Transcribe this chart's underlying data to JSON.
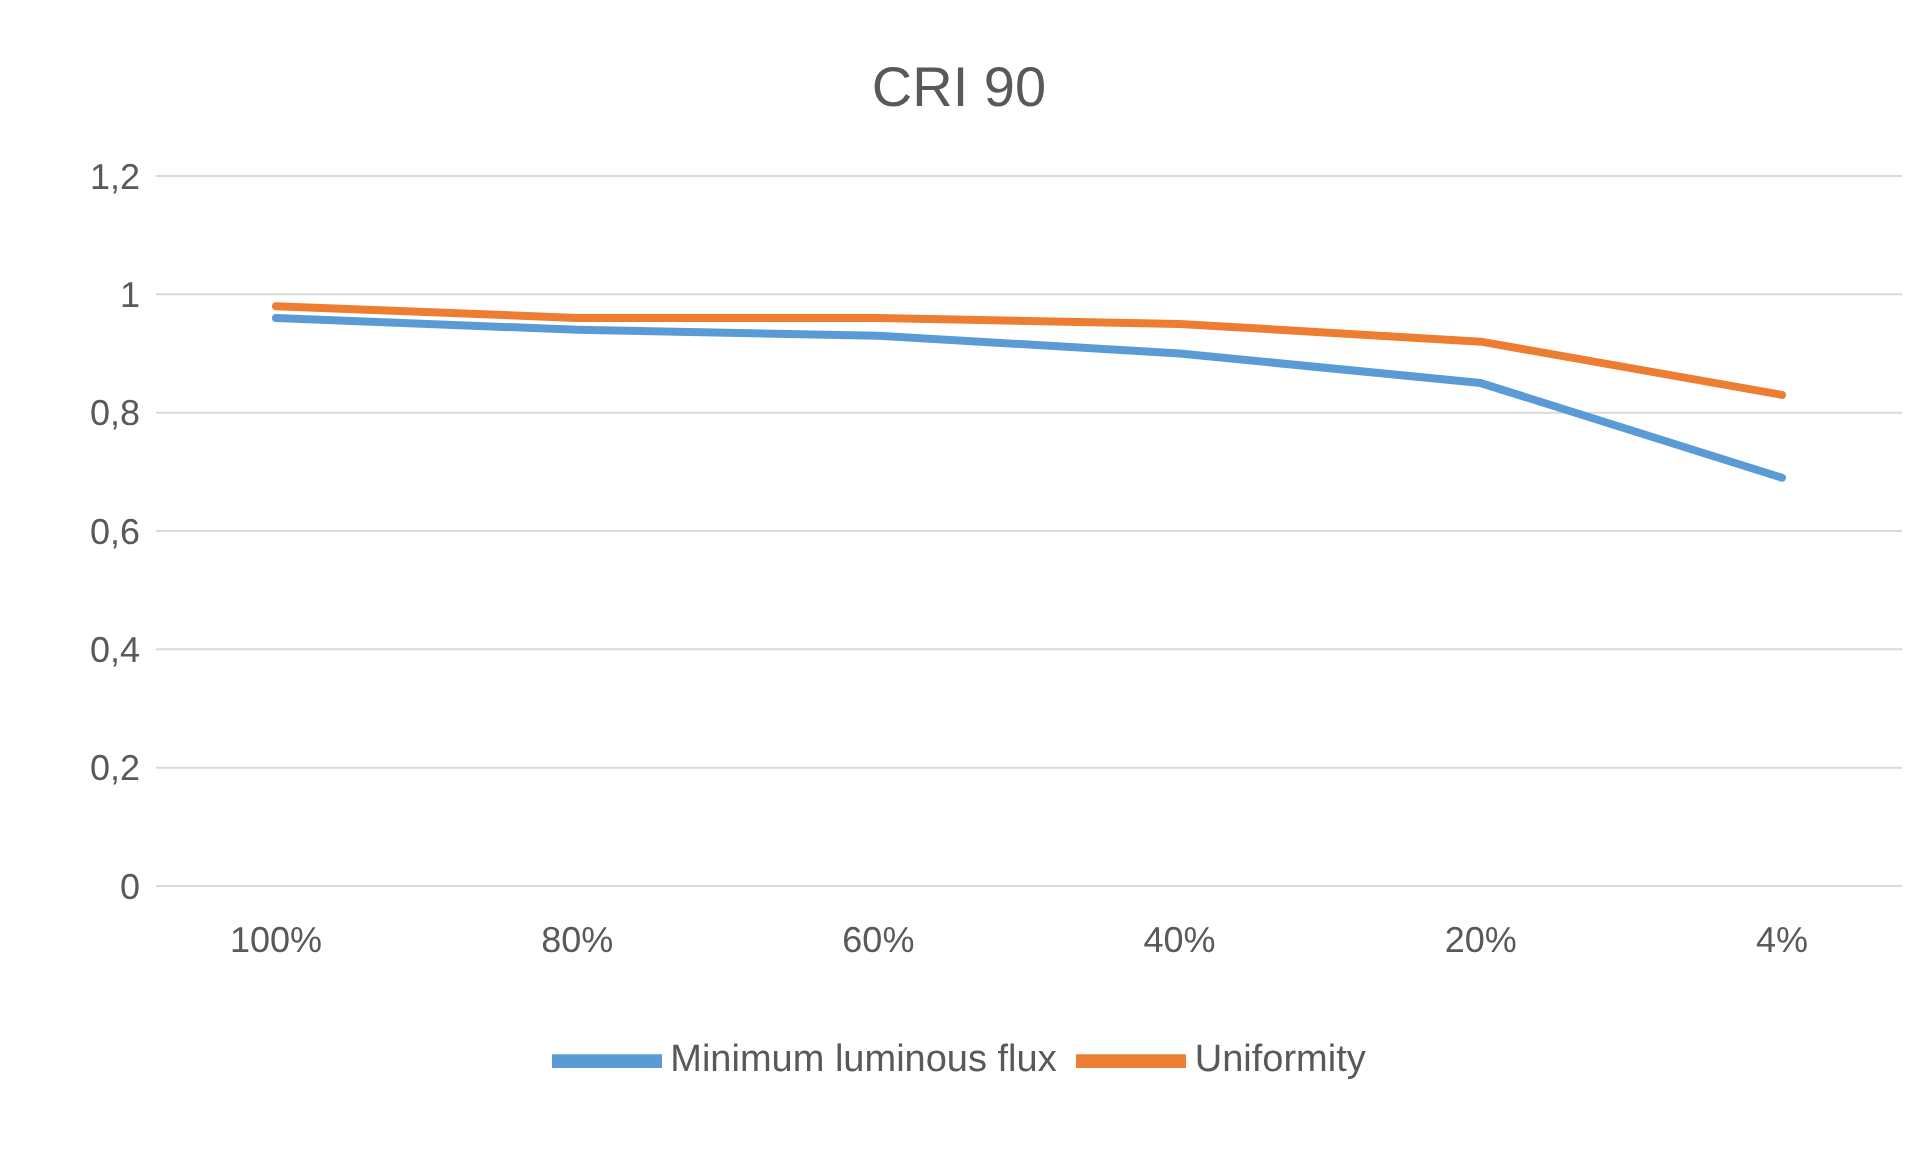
{
  "chart_data": {
    "type": "line",
    "title": "CRI 90",
    "categories": [
      "100%",
      "80%",
      "60%",
      "40%",
      "20%",
      "4%"
    ],
    "series": [
      {
        "name": "Minimum luminous flux",
        "color": "#5b9bd5",
        "values": [
          0.96,
          0.94,
          0.93,
          0.9,
          0.85,
          0.69
        ]
      },
      {
        "name": "Uniformity",
        "color": "#ed7d31",
        "values": [
          0.98,
          0.96,
          0.96,
          0.95,
          0.92,
          0.83
        ]
      }
    ],
    "ylim": [
      0,
      1.2
    ],
    "yticks": [
      0,
      {
        "value": 0.2,
        "label": "0,2"
      },
      {
        "value": 0.4,
        "label": "0,4"
      },
      {
        "value": 0.6,
        "label": "0,6"
      },
      {
        "value": 0.8,
        "label": "0,8"
      },
      1,
      {
        "value": 1.2,
        "label": "1,2"
      }
    ],
    "grid": "y",
    "legend": "bottom",
    "marker": "none",
    "line_style": "solid"
  }
}
